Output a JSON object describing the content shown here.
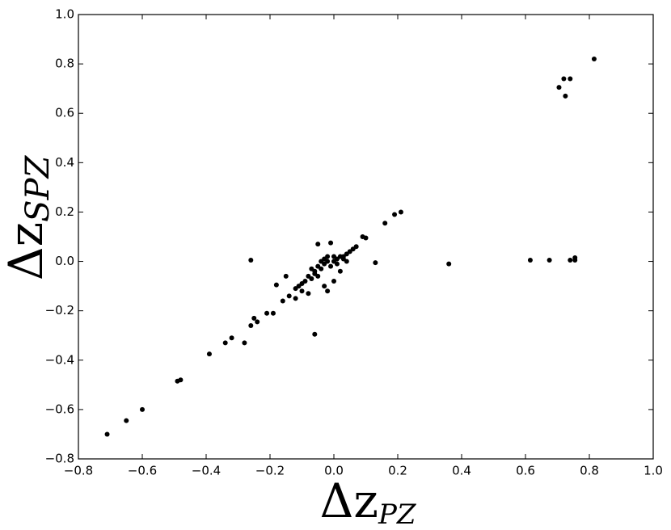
{
  "chart_data": {
    "type": "scatter",
    "xlabel": {
      "text": "Δz",
      "subscript": "PZ"
    },
    "ylabel": {
      "text": "Δz",
      "subscript": "SPZ"
    },
    "color": "#000000",
    "x": [
      -0.71,
      -0.65,
      -0.6,
      -0.49,
      -0.48,
      -0.39,
      -0.34,
      -0.32,
      -0.28,
      -0.26,
      -0.25,
      -0.24,
      -0.21,
      -0.19,
      -0.18,
      -0.16,
      -0.15,
      -0.14,
      -0.12,
      -0.12,
      -0.11,
      -0.1,
      -0.09,
      -0.08,
      -0.07,
      -0.06,
      -0.06,
      -0.05,
      -0.04,
      -0.03,
      -0.02,
      -0.01,
      0.0,
      0.01,
      0.02,
      0.03,
      0.04,
      0.05,
      0.06,
      0.07,
      -0.05,
      -0.01,
      -0.26,
      -0.1,
      -0.08,
      -0.03,
      -0.02,
      0.0,
      0.02,
      -0.04,
      0.09,
      0.1,
      0.13,
      0.16,
      0.19,
      0.21,
      0.36,
      0.615,
      0.675,
      0.74,
      0.755,
      0.755,
      0.705,
      0.72,
      0.74,
      0.725,
      0.815,
      -0.07,
      -0.05,
      -0.03,
      0.0,
      0.01,
      0.03,
      -0.06,
      -0.02,
      0.04
    ],
    "values": [
      -0.7,
      -0.645,
      -0.6,
      -0.485,
      -0.48,
      -0.375,
      -0.33,
      -0.31,
      -0.33,
      -0.26,
      -0.23,
      -0.245,
      -0.21,
      -0.21,
      -0.095,
      -0.16,
      -0.06,
      -0.14,
      -0.15,
      -0.11,
      -0.1,
      -0.09,
      -0.08,
      -0.06,
      -0.07,
      -0.295,
      -0.04,
      -0.02,
      -0.03,
      -0.01,
      0.0,
      -0.02,
      0.0,
      0.01,
      0.02,
      0.01,
      0.03,
      0.04,
      0.05,
      0.06,
      0.07,
      0.075,
      0.005,
      -0.12,
      -0.13,
      -0.1,
      -0.12,
      -0.08,
      -0.04,
      0.0,
      0.1,
      0.095,
      -0.005,
      0.155,
      0.19,
      0.2,
      -0.01,
      0.005,
      0.005,
      0.005,
      0.015,
      0.005,
      0.705,
      0.74,
      0.74,
      0.67,
      0.82,
      -0.03,
      -0.06,
      0.01,
      0.02,
      -0.01,
      0.02,
      -0.05,
      0.02,
      0.0
    ],
    "xlim": [
      -0.8,
      1.0
    ],
    "ylim": [
      -0.8,
      1.0
    ],
    "xticks": [
      {
        "value": -0.8,
        "label": "−0.8"
      },
      {
        "value": -0.6,
        "label": "−0.6"
      },
      {
        "value": -0.4,
        "label": "−0.4"
      },
      {
        "value": -0.2,
        "label": "−0.2"
      },
      {
        "value": 0.0,
        "label": "0.0"
      },
      {
        "value": 0.2,
        "label": "0.2"
      },
      {
        "value": 0.4,
        "label": "0.4"
      },
      {
        "value": 0.6,
        "label": "0.6"
      },
      {
        "value": 0.8,
        "label": "0.8"
      },
      {
        "value": 1.0,
        "label": "1.0"
      }
    ],
    "yticks": [
      {
        "value": -0.8,
        "label": "−0.8"
      },
      {
        "value": -0.6,
        "label": "−0.6"
      },
      {
        "value": -0.4,
        "label": "−0.4"
      },
      {
        "value": -0.2,
        "label": "−0.2"
      },
      {
        "value": 0.0,
        "label": "0.0"
      },
      {
        "value": 0.2,
        "label": "0.2"
      },
      {
        "value": 0.4,
        "label": "0.4"
      },
      {
        "value": 0.6,
        "label": "0.6"
      },
      {
        "value": 0.8,
        "label": "0.8"
      },
      {
        "value": 1.0,
        "label": "1.0"
      }
    ]
  }
}
